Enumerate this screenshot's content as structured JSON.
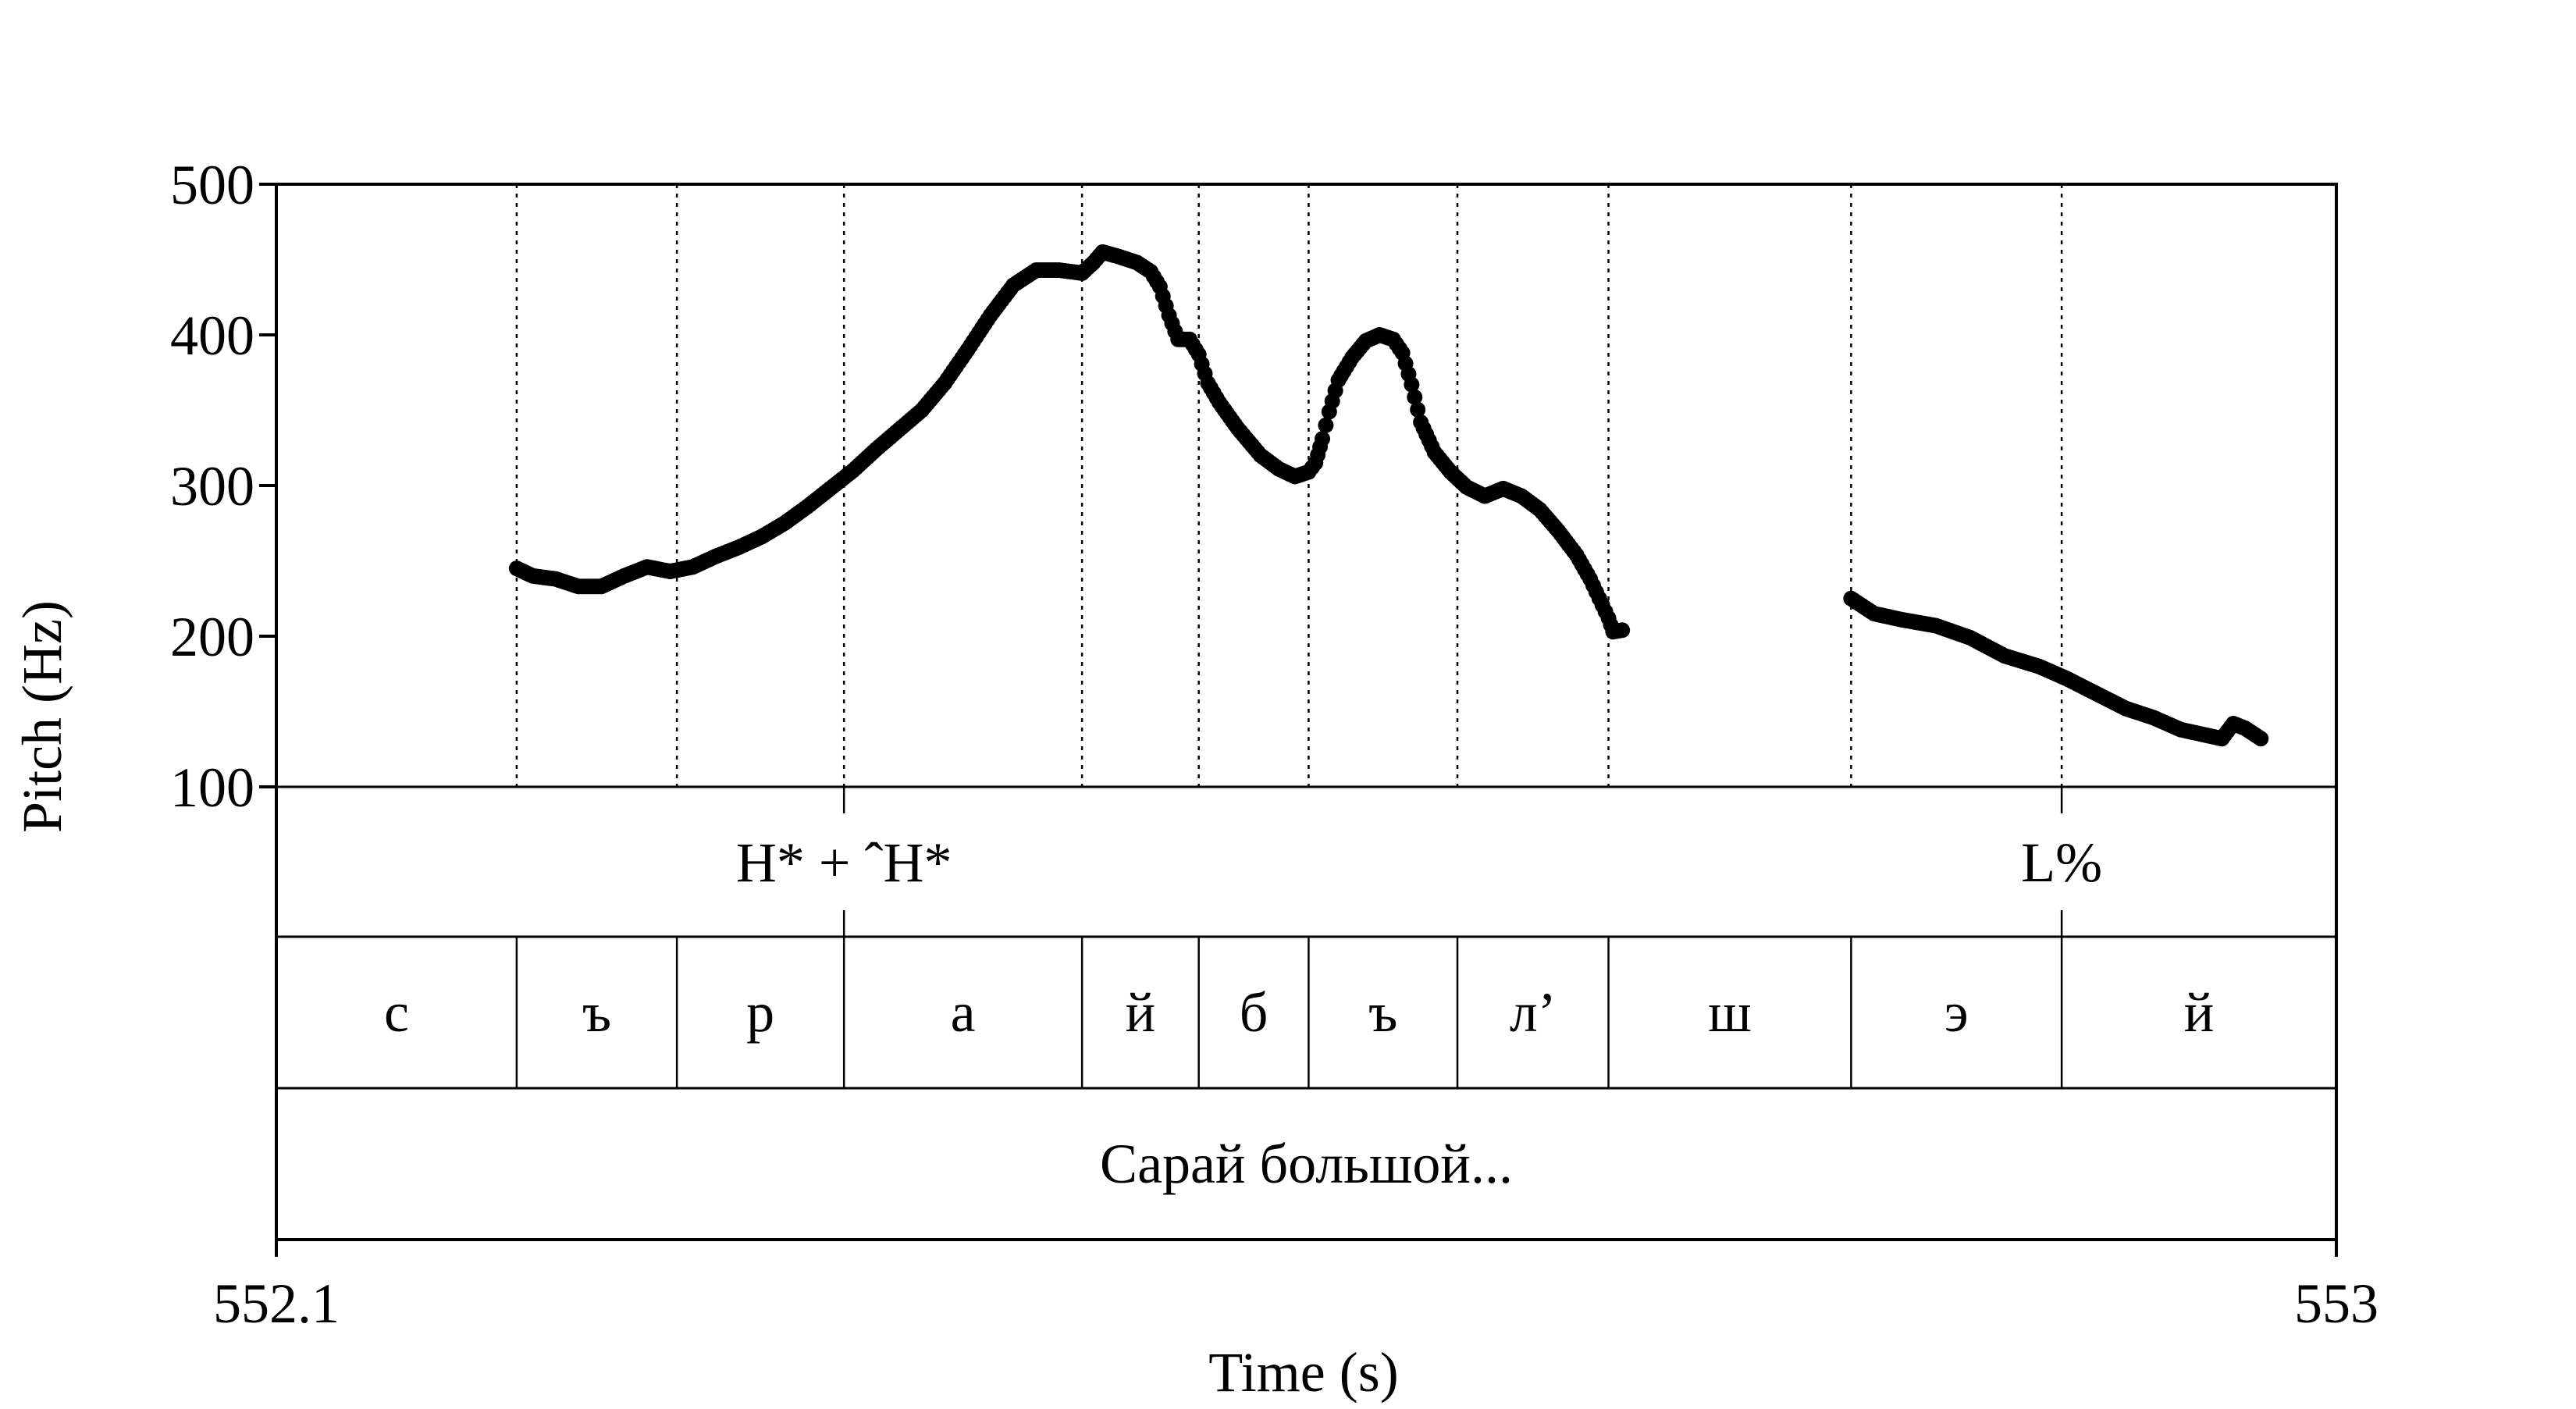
{
  "chart_data": {
    "type": "scatter",
    "xlabel": "Time (s)",
    "ylabel": "Pitch (Hz)",
    "xlim": [
      552.1,
      553
    ],
    "ylim": [
      100,
      500
    ],
    "x_tick_labels": [
      "552.1",
      "553"
    ],
    "y_ticks": [
      100,
      200,
      300,
      400,
      500
    ],
    "y_tick_labels": [
      "100",
      "200",
      "300",
      "400",
      "500"
    ],
    "grid": false,
    "boundaries": [
      552.205,
      552.275,
      552.348,
      552.452,
      552.503,
      552.551,
      552.616,
      552.682,
      552.788,
      552.88
    ],
    "tones": [
      {
        "label": "H* + ˆH*",
        "time": 552.348
      },
      {
        "label": "L%",
        "time": 552.88
      }
    ],
    "segments": [
      {
        "label": "с",
        "start": 552.1,
        "end": 552.205
      },
      {
        "label": "ъ",
        "start": 552.205,
        "end": 552.275
      },
      {
        "label": "р",
        "start": 552.275,
        "end": 552.348
      },
      {
        "label": "а",
        "start": 552.348,
        "end": 552.452
      },
      {
        "label": "й",
        "start": 552.452,
        "end": 552.503
      },
      {
        "label": "б",
        "start": 552.503,
        "end": 552.551
      },
      {
        "label": "ъ",
        "start": 552.551,
        "end": 552.616
      },
      {
        "label": "л’",
        "start": 552.616,
        "end": 552.682
      },
      {
        "label": "ш",
        "start": 552.682,
        "end": 552.788
      },
      {
        "label": "э",
        "start": 552.788,
        "end": 552.88
      },
      {
        "label": "й",
        "start": 552.88,
        "end": 553
      }
    ],
    "words": [
      {
        "label": "Сарай большой...",
        "start": 552.1,
        "end": 553
      }
    ],
    "series": [
      {
        "points": [
          [
            552.205,
            245
          ],
          [
            552.212,
            240
          ],
          [
            552.222,
            238
          ],
          [
            552.232,
            233
          ],
          [
            552.242,
            233
          ],
          [
            552.252,
            240
          ],
          [
            552.262,
            246
          ],
          [
            552.272,
            243
          ],
          [
            552.282,
            246
          ],
          [
            552.292,
            253
          ],
          [
            552.302,
            259
          ],
          [
            552.312,
            266
          ],
          [
            552.322,
            275
          ],
          [
            552.332,
            286
          ],
          [
            552.342,
            298
          ],
          [
            552.352,
            310
          ],
          [
            552.362,
            324
          ],
          [
            552.372,
            337
          ],
          [
            552.382,
            350
          ],
          [
            552.392,
            368
          ],
          [
            552.402,
            390
          ],
          [
            552.412,
            413
          ],
          [
            552.422,
            433
          ],
          [
            552.432,
            443
          ],
          [
            552.442,
            443
          ],
          [
            552.452,
            441
          ],
          [
            552.457,
            448
          ],
          [
            552.461,
            455
          ],
          [
            552.468,
            452
          ],
          [
            552.476,
            448
          ],
          [
            552.482,
            442
          ],
          [
            552.486,
            432
          ],
          [
            552.49,
            413
          ],
          [
            552.494,
            397
          ],
          [
            552.499,
            397
          ],
          [
            552.503,
            387
          ],
          [
            552.507,
            368
          ],
          [
            552.512,
            355
          ],
          [
            552.52,
            338
          ],
          [
            552.53,
            320
          ],
          [
            552.538,
            311
          ],
          [
            552.545,
            306
          ],
          [
            552.551,
            309
          ],
          [
            552.554,
            315
          ],
          [
            552.557,
            331
          ],
          [
            552.56,
            349
          ],
          [
            552.564,
            370
          ],
          [
            552.57,
            385
          ],
          [
            552.576,
            396
          ],
          [
            552.582,
            400
          ],
          [
            552.588,
            397
          ],
          [
            552.592,
            388
          ],
          [
            552.596,
            367
          ],
          [
            552.6,
            342
          ],
          [
            552.606,
            322
          ],
          [
            552.613,
            309
          ],
          [
            552.62,
            299
          ],
          [
            552.628,
            293
          ],
          [
            552.636,
            298
          ],
          [
            552.644,
            293
          ],
          [
            552.652,
            284
          ],
          [
            552.66,
            270
          ],
          [
            552.668,
            254
          ],
          [
            552.674,
            238
          ],
          [
            552.678,
            225
          ],
          [
            552.682,
            212
          ],
          [
            552.684,
            203
          ],
          [
            552.688,
            204
          ],
          null,
          [
            552.788,
            225
          ],
          [
            552.798,
            215
          ],
          [
            552.81,
            211
          ],
          [
            552.825,
            207
          ],
          [
            552.84,
            199
          ],
          [
            552.855,
            187
          ],
          [
            552.87,
            180
          ],
          [
            552.882,
            172
          ],
          [
            552.895,
            162
          ],
          [
            552.908,
            152
          ],
          [
            552.92,
            146
          ],
          [
            552.932,
            138
          ],
          [
            552.944,
            134
          ],
          [
            552.95,
            132
          ],
          [
            552.955,
            142
          ],
          [
            552.96,
            139
          ],
          [
            552.967,
            132
          ]
        ]
      }
    ]
  }
}
